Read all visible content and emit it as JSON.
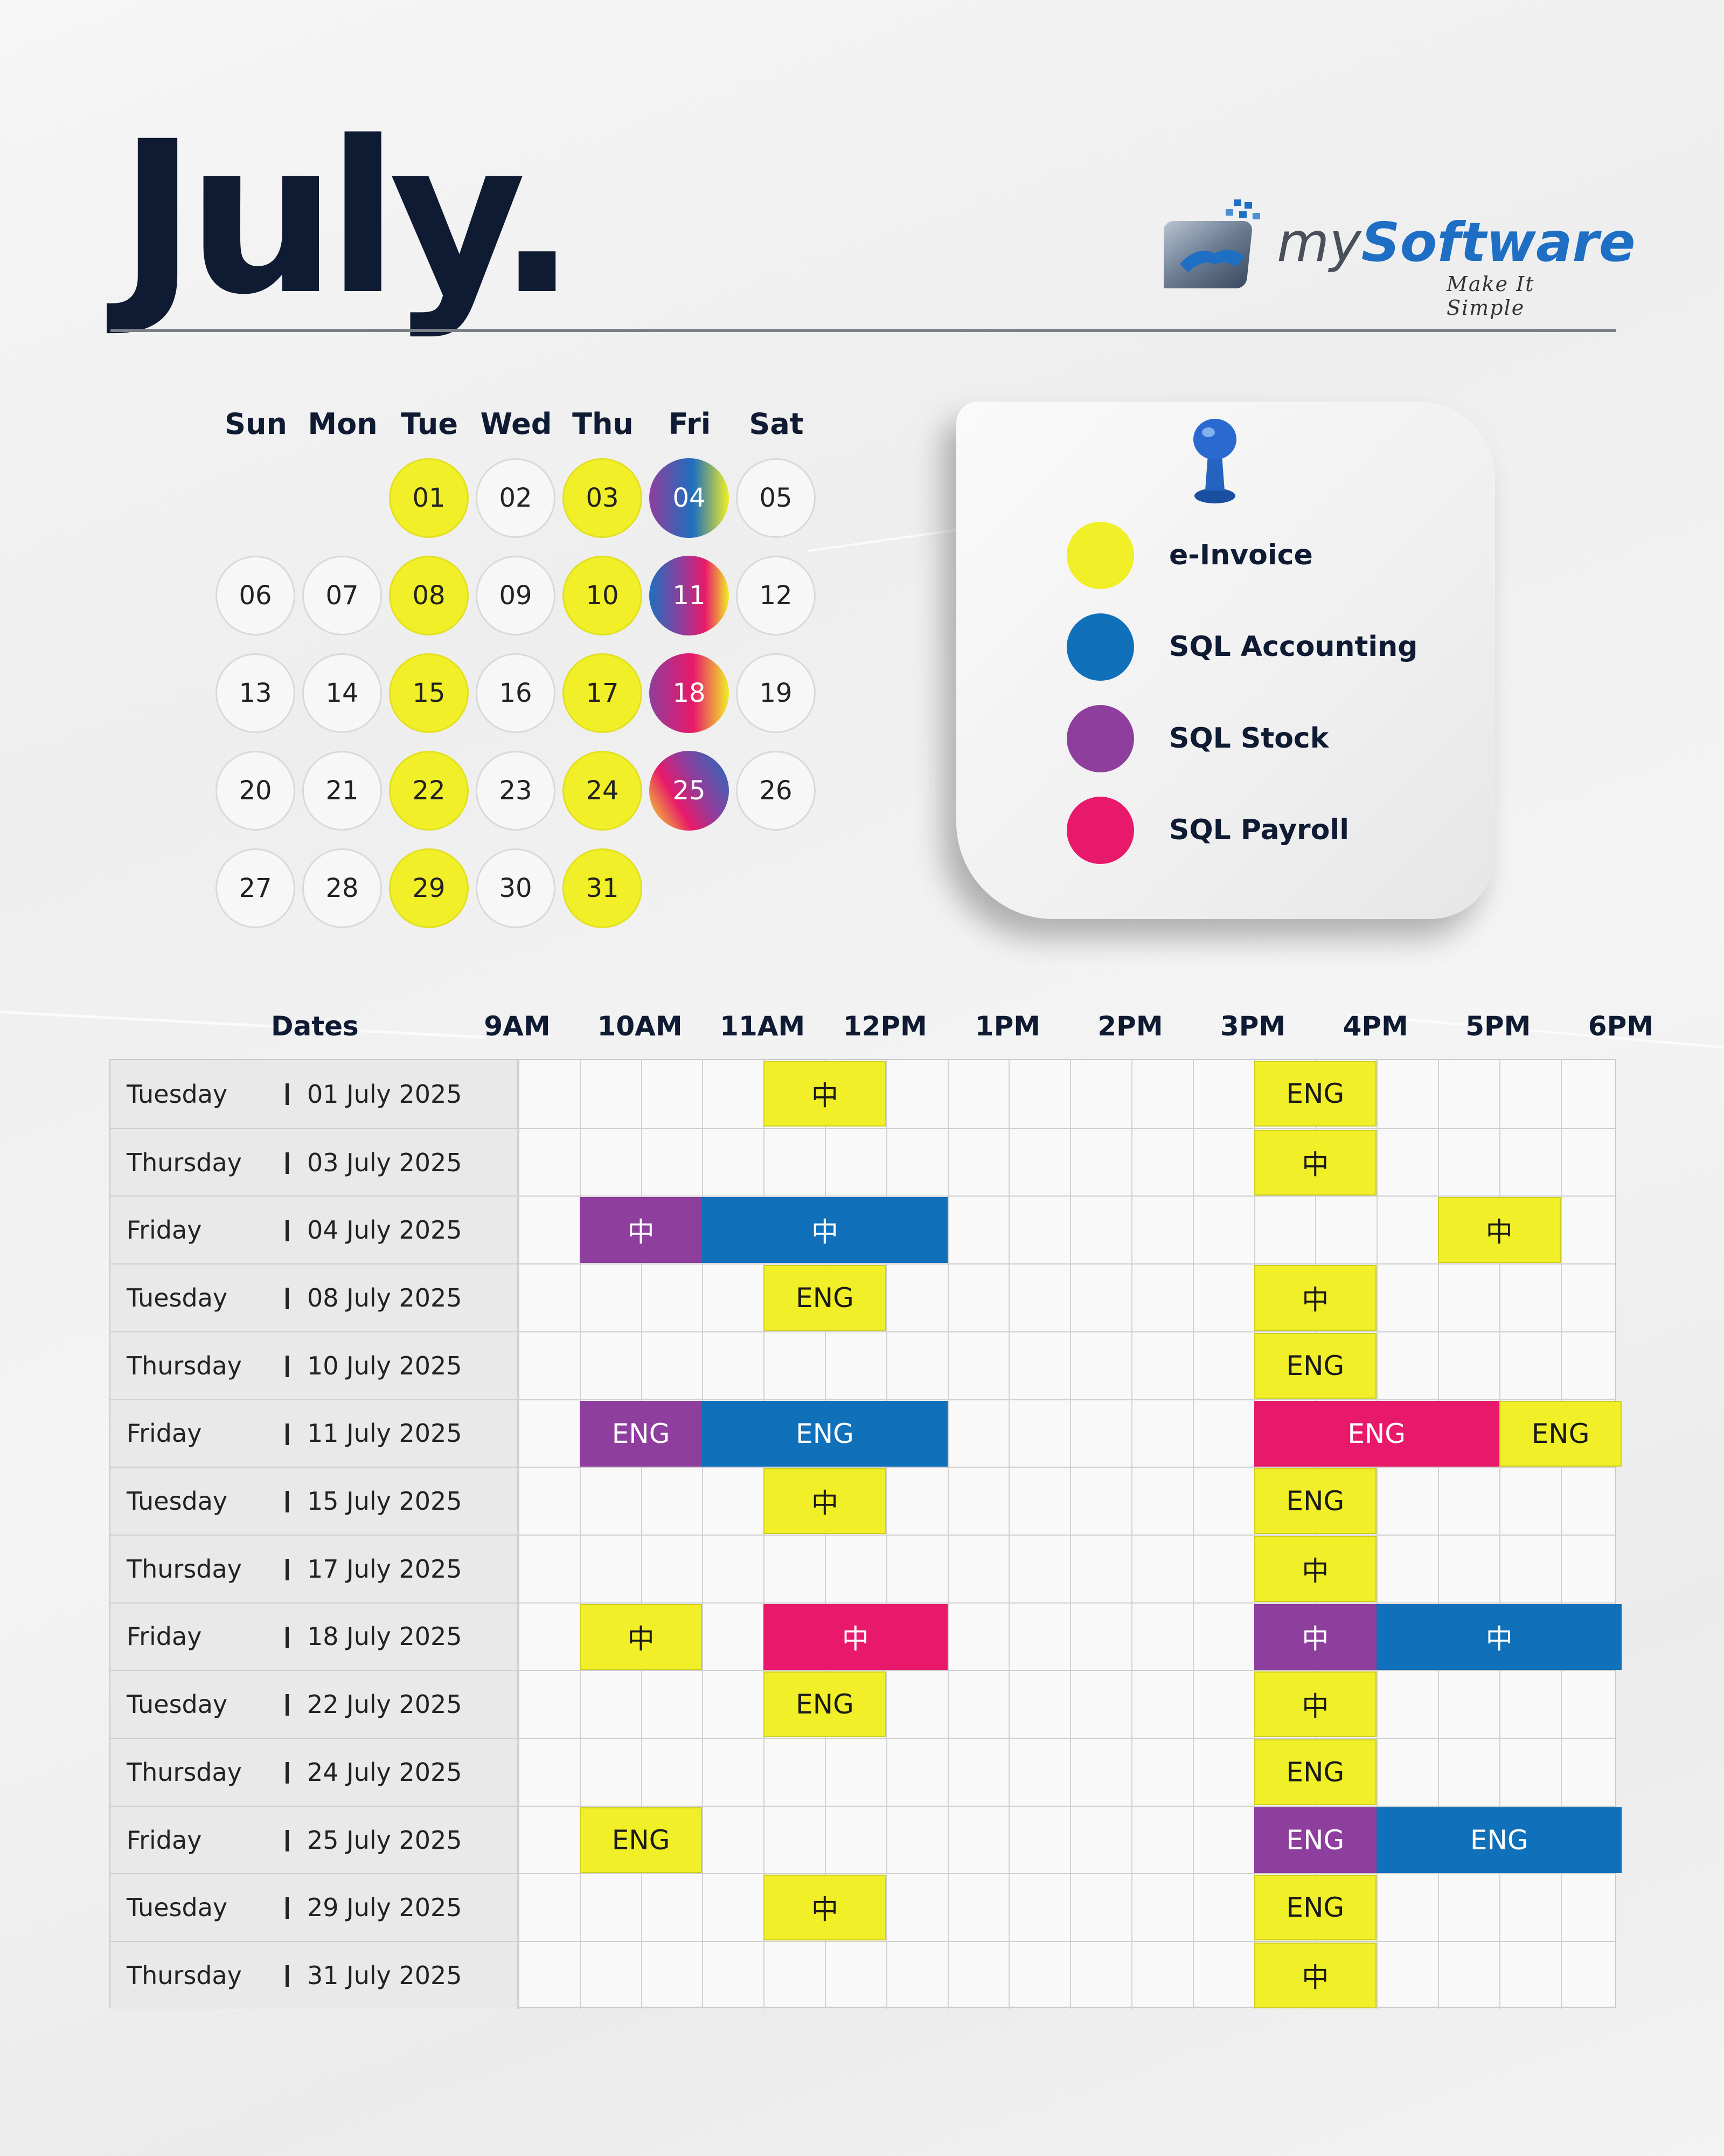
{
  "month_title": "July.",
  "brand": {
    "name_prefix": "my",
    "name_main": "Software",
    "tagline": "Make It Simple"
  },
  "calendar": {
    "weekdays": [
      "Sun",
      "Mon",
      "Tue",
      "Wed",
      "Thu",
      "Fri",
      "Sat"
    ],
    "days": [
      {
        "label": "01",
        "col": 2,
        "row": 0,
        "style": "yellow"
      },
      {
        "label": "02",
        "col": 3,
        "row": 0,
        "style": "plain"
      },
      {
        "label": "03",
        "col": 4,
        "row": 0,
        "style": "yellow"
      },
      {
        "label": "04",
        "col": 5,
        "row": 0,
        "style": "g4"
      },
      {
        "label": "05",
        "col": 6,
        "row": 0,
        "style": "plain"
      },
      {
        "label": "06",
        "col": 0,
        "row": 1,
        "style": "plain"
      },
      {
        "label": "07",
        "col": 1,
        "row": 1,
        "style": "plain"
      },
      {
        "label": "08",
        "col": 2,
        "row": 1,
        "style": "yellow"
      },
      {
        "label": "09",
        "col": 3,
        "row": 1,
        "style": "plain"
      },
      {
        "label": "10",
        "col": 4,
        "row": 1,
        "style": "yellow"
      },
      {
        "label": "11",
        "col": 5,
        "row": 1,
        "style": "g11"
      },
      {
        "label": "12",
        "col": 6,
        "row": 1,
        "style": "plain"
      },
      {
        "label": "13",
        "col": 0,
        "row": 2,
        "style": "plain"
      },
      {
        "label": "14",
        "col": 1,
        "row": 2,
        "style": "plain"
      },
      {
        "label": "15",
        "col": 2,
        "row": 2,
        "style": "yellow"
      },
      {
        "label": "16",
        "col": 3,
        "row": 2,
        "style": "plain"
      },
      {
        "label": "17",
        "col": 4,
        "row": 2,
        "style": "yellow"
      },
      {
        "label": "18",
        "col": 5,
        "row": 2,
        "style": "g18"
      },
      {
        "label": "19",
        "col": 6,
        "row": 2,
        "style": "plain"
      },
      {
        "label": "20",
        "col": 0,
        "row": 3,
        "style": "plain"
      },
      {
        "label": "21",
        "col": 1,
        "row": 3,
        "style": "plain"
      },
      {
        "label": "22",
        "col": 2,
        "row": 3,
        "style": "yellow"
      },
      {
        "label": "23",
        "col": 3,
        "row": 3,
        "style": "plain"
      },
      {
        "label": "24",
        "col": 4,
        "row": 3,
        "style": "yellow"
      },
      {
        "label": "25",
        "col": 5,
        "row": 3,
        "style": "g25"
      },
      {
        "label": "26",
        "col": 6,
        "row": 3,
        "style": "plain"
      },
      {
        "label": "27",
        "col": 0,
        "row": 4,
        "style": "plain"
      },
      {
        "label": "28",
        "col": 1,
        "row": 4,
        "style": "plain"
      },
      {
        "label": "29",
        "col": 2,
        "row": 4,
        "style": "yellow"
      },
      {
        "label": "30",
        "col": 3,
        "row": 4,
        "style": "plain"
      },
      {
        "label": "31",
        "col": 4,
        "row": 4,
        "style": "yellow"
      }
    ]
  },
  "legend": {
    "items": [
      {
        "label": "e-Invoice",
        "color": "#f1ef27"
      },
      {
        "label": "SQL Accounting",
        "color": "#1170ba"
      },
      {
        "label": "SQL Stock",
        "color": "#8e3e9c"
      },
      {
        "label": "SQL Payroll",
        "color": "#e8196a"
      }
    ]
  },
  "schedule": {
    "dates_header": "Dates",
    "times": [
      "9AM",
      "10AM",
      "11AM",
      "12PM",
      "1PM",
      "2PM",
      "3PM",
      "4PM",
      "5PM",
      "6PM"
    ],
    "rows": [
      {
        "day": "Tuesday",
        "date": "01 July 2025",
        "sessions": [
          {
            "start": 11,
            "end": 12,
            "category": "yellow",
            "lang": "中"
          },
          {
            "start": 15,
            "end": 16,
            "category": "yellow",
            "lang": "ENG"
          }
        ]
      },
      {
        "day": "Thursday",
        "date": "03 July 2025",
        "sessions": [
          {
            "start": 15,
            "end": 16,
            "category": "yellow",
            "lang": "中"
          }
        ]
      },
      {
        "day": "Friday",
        "date": "04 July 2025",
        "sessions": [
          {
            "start": 9.5,
            "end": 10.5,
            "category": "purple",
            "lang": "中"
          },
          {
            "start": 10.5,
            "end": 12.5,
            "category": "blue",
            "lang": "中"
          },
          {
            "start": 16.5,
            "end": 17.5,
            "category": "yellow",
            "lang": "中"
          }
        ]
      },
      {
        "day": "Tuesday",
        "date": "08 July 2025",
        "sessions": [
          {
            "start": 11,
            "end": 12,
            "category": "yellow",
            "lang": "ENG"
          },
          {
            "start": 15,
            "end": 16,
            "category": "yellow",
            "lang": "中"
          }
        ]
      },
      {
        "day": "Thursday",
        "date": "10 July 2025",
        "sessions": [
          {
            "start": 15,
            "end": 16,
            "category": "yellow",
            "lang": "ENG"
          }
        ]
      },
      {
        "day": "Friday",
        "date": "11 July 2025",
        "sessions": [
          {
            "start": 9.5,
            "end": 10.5,
            "category": "purple",
            "lang": "ENG"
          },
          {
            "start": 10.5,
            "end": 12.5,
            "category": "blue",
            "lang": "ENG"
          },
          {
            "start": 15,
            "end": 17,
            "category": "pink",
            "lang": "ENG"
          },
          {
            "start": 17,
            "end": 18,
            "category": "yellow",
            "lang": "ENG"
          }
        ]
      },
      {
        "day": "Tuesday",
        "date": "15 July 2025",
        "sessions": [
          {
            "start": 11,
            "end": 12,
            "category": "yellow",
            "lang": "中"
          },
          {
            "start": 15,
            "end": 16,
            "category": "yellow",
            "lang": "ENG"
          }
        ]
      },
      {
        "day": "Thursday",
        "date": "17 July 2025",
        "sessions": [
          {
            "start": 15,
            "end": 16,
            "category": "yellow",
            "lang": "中"
          }
        ]
      },
      {
        "day": "Friday",
        "date": "18 July 2025",
        "sessions": [
          {
            "start": 9.5,
            "end": 10.5,
            "category": "yellow",
            "lang": "中"
          },
          {
            "start": 11,
            "end": 12.5,
            "category": "pink",
            "lang": "中"
          },
          {
            "start": 15,
            "end": 16,
            "category": "purple",
            "lang": "中"
          },
          {
            "start": 16,
            "end": 18,
            "category": "blue",
            "lang": "中"
          }
        ]
      },
      {
        "day": "Tuesday",
        "date": "22 July 2025",
        "sessions": [
          {
            "start": 11,
            "end": 12,
            "category": "yellow",
            "lang": "ENG"
          },
          {
            "start": 15,
            "end": 16,
            "category": "yellow",
            "lang": "中"
          }
        ]
      },
      {
        "day": "Thursday",
        "date": "24 July 2025",
        "sessions": [
          {
            "start": 15,
            "end": 16,
            "category": "yellow",
            "lang": "ENG"
          }
        ]
      },
      {
        "day": "Friday",
        "date": "25 July 2025",
        "sessions": [
          {
            "start": 9.5,
            "end": 10.5,
            "category": "yellow",
            "lang": "ENG"
          },
          {
            "start": 15,
            "end": 16,
            "category": "purple",
            "lang": "ENG"
          },
          {
            "start": 16,
            "end": 18,
            "category": "blue",
            "lang": "ENG"
          }
        ]
      },
      {
        "day": "Tuesday",
        "date": "29 July 2025",
        "sessions": [
          {
            "start": 11,
            "end": 12,
            "category": "yellow",
            "lang": "中"
          },
          {
            "start": 15,
            "end": 16,
            "category": "yellow",
            "lang": "ENG"
          }
        ]
      },
      {
        "day": "Thursday",
        "date": "31 July 2025",
        "sessions": [
          {
            "start": 15,
            "end": 16,
            "category": "yellow",
            "lang": "中"
          }
        ]
      }
    ]
  }
}
